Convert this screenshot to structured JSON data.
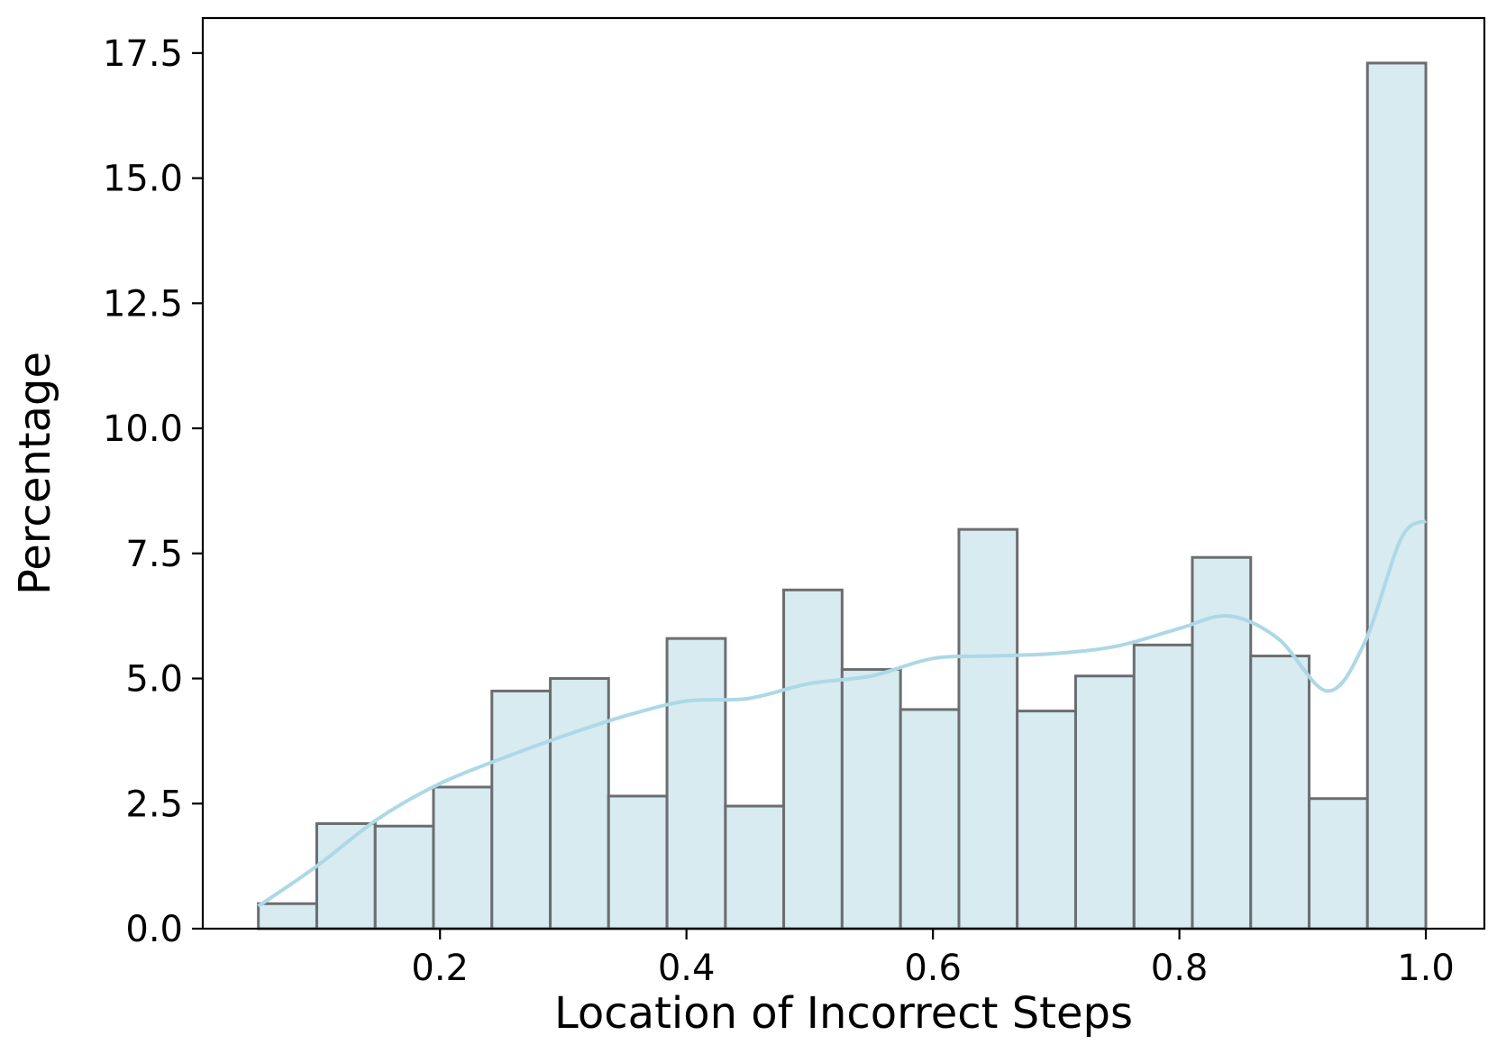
{
  "chart_data": {
    "type": "bar",
    "title": "",
    "xlabel": "Location of Incorrect Steps",
    "ylabel": "Percentage",
    "xlim": [
      0.0075,
      1.0475
    ],
    "ylim": [
      0,
      18.2
    ],
    "x_ticks": [
      {
        "value": 0.2,
        "label": "0.2"
      },
      {
        "value": 0.4,
        "label": "0.4"
      },
      {
        "value": 0.6,
        "label": "0.6"
      },
      {
        "value": 0.8,
        "label": "0.8"
      },
      {
        "value": 1.0,
        "label": "1.0"
      }
    ],
    "y_ticks": [
      {
        "value": 0.0,
        "label": "0.0"
      },
      {
        "value": 2.5,
        "label": "2.5"
      },
      {
        "value": 5.0,
        "label": "5.0"
      },
      {
        "value": 7.5,
        "label": "7.5"
      },
      {
        "value": 10.0,
        "label": "10.0"
      },
      {
        "value": 12.5,
        "label": "12.5"
      },
      {
        "value": 15.0,
        "label": "15.0"
      },
      {
        "value": 17.5,
        "label": "17.5"
      }
    ],
    "bin_edges": [
      0.0526,
      0.1,
      0.1474,
      0.1947,
      0.2421,
      0.2895,
      0.3368,
      0.3842,
      0.4316,
      0.4789,
      0.5263,
      0.5737,
      0.6211,
      0.6684,
      0.7158,
      0.7632,
      0.8105,
      0.8579,
      0.9053,
      0.9526,
      1.0
    ],
    "values": [
      0.5,
      2.1,
      2.05,
      2.83,
      4.75,
      5.0,
      2.65,
      5.8,
      2.45,
      6.77,
      5.18,
      4.38,
      7.98,
      4.35,
      5.05,
      5.67,
      7.42,
      5.45,
      2.6,
      17.3
    ],
    "kde": {
      "x": [
        0.0526,
        0.1,
        0.15,
        0.2,
        0.25,
        0.3,
        0.35,
        0.4,
        0.45,
        0.5,
        0.55,
        0.6,
        0.65,
        0.7,
        0.75,
        0.8,
        0.84,
        0.88,
        0.92,
        0.95,
        0.98,
        1.0
      ],
      "y": [
        0.45,
        1.25,
        2.2,
        2.9,
        3.4,
        3.85,
        4.25,
        4.55,
        4.6,
        4.9,
        5.05,
        5.4,
        5.45,
        5.5,
        5.65,
        6.0,
        6.25,
        5.8,
        4.75,
        5.7,
        7.8,
        8.15
      ]
    },
    "colors": {
      "bar_fill": "#d7ebf1",
      "bar_edge": "#6b6e70",
      "kde_line": "#add8e6"
    }
  }
}
